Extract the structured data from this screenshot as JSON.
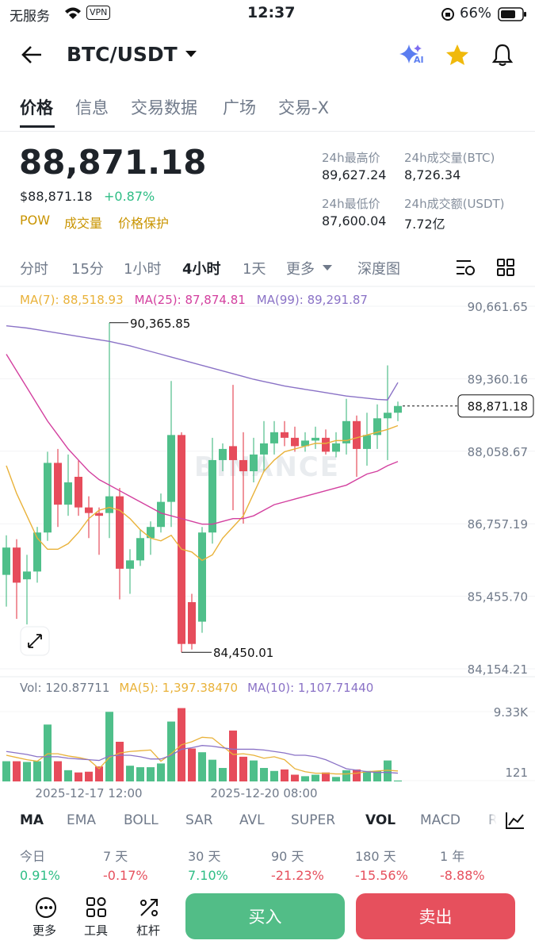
{
  "status": {
    "carrier": "无服务",
    "vpn": "VPN",
    "time": "12:37",
    "battery": "66%"
  },
  "header": {
    "pair": "BTC/USDT",
    "ai": "AI"
  },
  "tabs": [
    "价格",
    "信息",
    "交易数据",
    "广场",
    "交易-X"
  ],
  "price": {
    "last": "88,871.18",
    "usd": "$88,871.18",
    "change": "+0.87%",
    "tags": [
      "POW",
      "成交量",
      "价格保护"
    ]
  },
  "stats": [
    {
      "label": "24h最高价",
      "value": "89,627.24"
    },
    {
      "label": "24h成交量(BTC)",
      "value": "8,726.34"
    },
    {
      "label": "24h最低价",
      "value": "87,600.04"
    },
    {
      "label": "24h成交额(USDT)",
      "value": "7.72亿"
    }
  ],
  "intervals": [
    "分时",
    "15分",
    "1小时",
    "4小时",
    "1天",
    "更多",
    "深度图"
  ],
  "chart_data": {
    "type": "candlestick",
    "watermark": "BINANCE",
    "up_color": "#4fbf8a",
    "down_color": "#e64c5b",
    "legend": [
      "MA(7): 88,518.93",
      "MA(25): 87,874.81",
      "MA(99): 89,291.87"
    ],
    "categories": [
      null,
      null,
      null,
      null,
      null,
      null,
      null,
      null,
      "2025-12-17 12:00",
      null,
      null,
      null,
      null,
      null,
      null,
      null,
      null,
      null,
      null,
      null,
      null,
      null,
      null,
      null,
      null,
      "2025-12-20 08:00",
      null,
      null,
      null,
      null,
      null,
      null,
      null,
      null,
      null,
      null,
      null,
      null,
      null
    ],
    "open": [
      85840,
      86330,
      85760,
      85900,
      86600,
      87850,
      87100,
      87600,
      87050,
      86950,
      86950,
      87250,
      85950,
      86100,
      86500,
      86700,
      87150,
      88350,
      85350,
      85000,
      86600,
      87900,
      88150,
      87900,
      87700,
      88000,
      88200,
      88400,
      88300,
      88150,
      88250,
      88300,
      88050,
      88200,
      88600,
      88100,
      88350,
      88650,
      88750
    ],
    "high": [
      86550,
      86480,
      86200,
      86700,
      88050,
      88100,
      88000,
      87900,
      87250,
      87050,
      90365.85,
      87400,
      86300,
      86650,
      86800,
      87300,
      89320,
      88400,
      85500,
      86700,
      88300,
      88200,
      89250,
      88400,
      88300,
      88600,
      88600,
      88600,
      88500,
      88400,
      88500,
      88450,
      88400,
      89000,
      88700,
      88750,
      88900,
      89600,
      88950
    ],
    "low": [
      85270,
      85050,
      84950,
      85700,
      86450,
      86700,
      86900,
      86900,
      86500,
      86200,
      86500,
      85400,
      85500,
      86000,
      86200,
      86600,
      86700,
      84450.01,
      84500,
      84800,
      86400,
      87700,
      87000,
      86760,
      87500,
      87700,
      88000,
      88150,
      88050,
      88050,
      88100,
      88000,
      87950,
      88000,
      87600,
      87800,
      88100,
      87900,
      88600
    ],
    "close": [
      86330,
      85700,
      85900,
      86600,
      87850,
      87100,
      87500,
      87050,
      86950,
      86900,
      87250,
      85950,
      86100,
      86500,
      86700,
      87150,
      88350,
      84600,
      84600,
      86600,
      87900,
      88100,
      87900,
      87700,
      88000,
      88200,
      88400,
      88300,
      88150,
      88250,
      88300,
      88050,
      88200,
      88600,
      88100,
      88350,
      88650,
      88750,
      88871.18
    ],
    "ma": [
      {
        "name": "MA(7)",
        "color": "#e9b23a",
        "values": [
          87800,
          87300,
          86900,
          86500,
          86300,
          86300,
          86400,
          86600,
          86850,
          87000,
          87050,
          87000,
          86850,
          86650,
          86500,
          86450,
          86550,
          86300,
          86250,
          86100,
          86200,
          86500,
          86700,
          86900,
          87300,
          87700,
          87900,
          88050,
          88100,
          88150,
          88200,
          88200,
          88250,
          88250,
          88300,
          88350,
          88400,
          88450,
          88518.93
        ]
      },
      {
        "name": "MA(25)",
        "color": "#d3409f",
        "values": [
          89800,
          89500,
          89200,
          88900,
          88600,
          88350,
          88100,
          87900,
          87700,
          87550,
          87450,
          87350,
          87250,
          87150,
          87050,
          86950,
          86900,
          86850,
          86800,
          86750,
          86750,
          86800,
          86850,
          86850,
          86900,
          87000,
          87100,
          87150,
          87200,
          87250,
          87300,
          87350,
          87400,
          87450,
          87550,
          87650,
          87700,
          87800,
          87874.81
        ]
      },
      {
        "name": "MA(99)",
        "color": "#8a72c6",
        "values": [
          90310,
          90290,
          90270,
          90240,
          90210,
          90180,
          90150,
          90120,
          90090,
          90060,
          90030,
          89990,
          89950,
          89900,
          89850,
          89800,
          89750,
          89700,
          89650,
          89600,
          89550,
          89500,
          89450,
          89400,
          89350,
          89310,
          89270,
          89230,
          89200,
          89170,
          89140,
          89110,
          89080,
          89050,
          89030,
          89010,
          88990,
          88980,
          89291.87
        ]
      }
    ],
    "ylim": [
      84154.21,
      90661.65
    ],
    "yticks": [
      {
        "value": 90661.65,
        "label": "90,661.65"
      },
      {
        "value": 89360.16,
        "label": "89,360.16"
      },
      {
        "value": 88058.67,
        "label": "88,058.67"
      },
      {
        "value": 86757.19,
        "label": "86,757.19"
      },
      {
        "value": 85455.7,
        "label": "85,455.70"
      },
      {
        "value": 84154.21,
        "label": "84,154.21"
      }
    ],
    "grid": true,
    "last_label": "88,871.18",
    "high_label": "90,365.85",
    "low_label": "84,450.01",
    "volume": {
      "legend": [
        "Vol: 120.87711",
        "MA(5): 1,397.38470",
        "MA(10): 1,107.71440"
      ],
      "values": [
        2700,
        2700,
        2600,
        2700,
        7600,
        2700,
        1500,
        1200,
        1300,
        2000,
        9300,
        5300,
        2100,
        1900,
        1900,
        2400,
        8000,
        9800,
        4400,
        3900,
        2900,
        1800,
        6800,
        3300,
        2800,
        1800,
        1400,
        1600,
        900,
        700,
        900,
        1200,
        600,
        1500,
        1600,
        1400,
        1400,
        2800,
        120.87711
      ],
      "ma": [
        {
          "name": "MA(5)",
          "color": "#e9b23a",
          "values": [
            3500,
            3200,
            2900,
            2700,
            3700,
            3700,
            3400,
            3200,
            2900,
            1700,
            3200,
            3800,
            4000,
            4100,
            4200,
            2700,
            3700,
            4900,
            5300,
            5900,
            5800,
            4700,
            3600,
            3700,
            3500,
            3100,
            3300,
            2900,
            1700,
            1300,
            1100,
            1100,
            1000,
            1000,
            1100,
            1300,
            1400,
            1500,
            1397.3847
          ]
        },
        {
          "name": "MA(10)",
          "color": "#8a72c6",
          "values": [
            4000,
            3800,
            3600,
            3300,
            3300,
            3300,
            3100,
            3000,
            2900,
            2800,
            3400,
            3500,
            3500,
            3300,
            3000,
            3000,
            3500,
            4300,
            4500,
            4800,
            4700,
            4500,
            4300,
            4300,
            4300,
            4200,
            4000,
            3800,
            3500,
            3500,
            3300,
            2900,
            2300,
            1700,
            1500,
            1300,
            1200,
            1200,
            1107.7144
          ]
        }
      ],
      "ylim": [
        0,
        10600
      ],
      "yticks": [
        {
          "value": 9330,
          "label": "9.33K"
        },
        121
      ]
    }
  },
  "indicators": [
    "MA",
    "EMA",
    "BOLL",
    "SAR",
    "AVL",
    "SUPER",
    "VOL",
    "MACD",
    "R"
  ],
  "performance": [
    {
      "period": "今日",
      "change": "0.91%"
    },
    {
      "period": "7 天",
      "change": "-0.17%"
    },
    {
      "period": "30 天",
      "change": "7.10%"
    },
    {
      "period": "90 天",
      "change": "-21.23%"
    },
    {
      "period": "180 天",
      "change": "-15.56%"
    },
    {
      "period": "1 年",
      "change": "-8.88%"
    }
  ],
  "bottom": {
    "more": "更多",
    "tools": "工具",
    "leverage": "杠杆",
    "buy": "买入",
    "sell": "卖出"
  }
}
